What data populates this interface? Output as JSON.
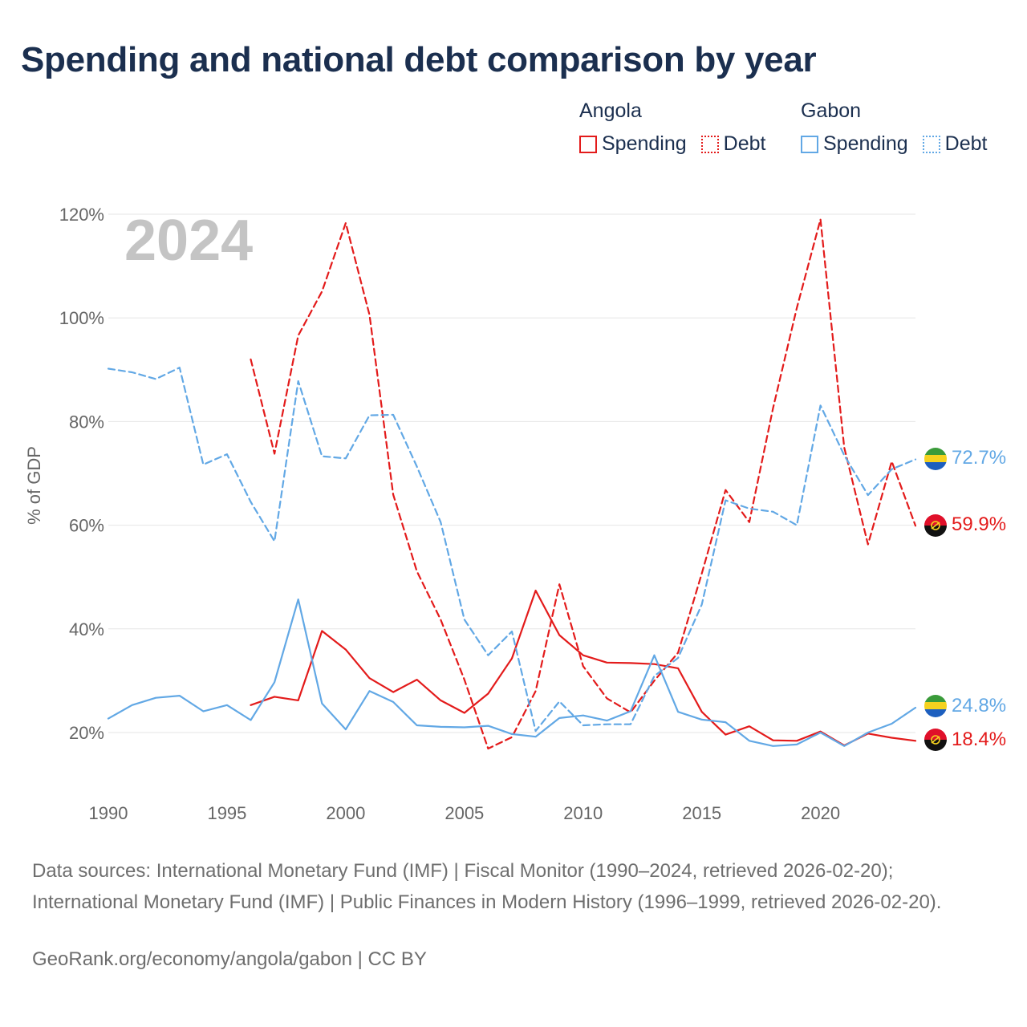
{
  "title": "Spending and national debt comparison by year",
  "legend": {
    "groups": [
      {
        "name": "Angola",
        "spending_label": "Spending",
        "debt_label": "Debt",
        "color": "#e31b1b"
      },
      {
        "name": "Gabon",
        "spending_label": "Spending",
        "debt_label": "Debt",
        "color": "#62a8e5"
      }
    ]
  },
  "current_year": "2024",
  "footer": {
    "sources": "Data sources: International Monetary Fund (IMF) | Fiscal Monitor (1990–2024, retrieved 2026-02-20); International Monetary Fund (IMF) | Public Finances in Modern History (1996–1999, retrieved 2026-02-20).",
    "credit": "GeoRank.org/economy/angola/gabon | CC BY"
  },
  "chart_data": {
    "type": "line",
    "title": "Spending and national debt comparison by year",
    "xlabel": "",
    "ylabel": "% of GDP",
    "xlim": [
      1990,
      2024
    ],
    "ylim": [
      10,
      120
    ],
    "x_ticks": [
      1990,
      1995,
      2000,
      2005,
      2010,
      2015,
      2020
    ],
    "x_tick_labels": [
      "1990",
      "1995",
      "2000",
      "2005",
      "2010",
      "2015",
      "2020"
    ],
    "y_ticks": [
      20,
      40,
      60,
      80,
      100,
      120
    ],
    "y_tick_labels": [
      "20%",
      "40%",
      "60%",
      "80%",
      "100%",
      "120%"
    ],
    "grid": true,
    "legend_position": "top-right",
    "series": [
      {
        "name": "Angola Spending",
        "country": "Angola",
        "metric": "Spending",
        "color": "#e31b1b",
        "dashed": false,
        "x_start": 1996,
        "values": [
          25.3,
          26.9,
          26.2,
          39.6,
          36.0,
          30.5,
          27.8,
          30.2,
          26.2,
          23.8,
          27.5,
          34.3,
          47.4,
          38.8,
          34.9,
          33.5,
          33.4,
          33.2,
          32.4,
          24.0,
          19.6,
          21.2,
          18.5,
          18.4,
          20.2,
          17.5,
          19.8,
          19.0,
          18.4
        ],
        "end_label": "18.4%"
      },
      {
        "name": "Angola Debt",
        "country": "Angola",
        "metric": "Debt",
        "color": "#e31b1b",
        "dashed": true,
        "x_start": 1996,
        "values": [
          92.0,
          73.8,
          96.6,
          105.1,
          118.3,
          100.6,
          65.9,
          51.1,
          41.8,
          30.2,
          16.9,
          19.1,
          28.0,
          48.6,
          32.8,
          26.6,
          23.9,
          30.0,
          35.4,
          50.7,
          66.8,
          60.6,
          82.6,
          101.9,
          119.0,
          75.0,
          56.3,
          72.3,
          59.9
        ],
        "end_label": "59.9%"
      },
      {
        "name": "Gabon Spending",
        "country": "Gabon",
        "metric": "Spending",
        "color": "#62a8e5",
        "dashed": false,
        "x_start": 1990,
        "values": [
          22.7,
          25.3,
          26.7,
          27.1,
          24.1,
          25.3,
          22.4,
          29.7,
          45.7,
          25.6,
          20.6,
          28.0,
          25.9,
          21.4,
          21.1,
          21.0,
          21.3,
          19.7,
          19.2,
          22.8,
          23.3,
          22.3,
          24.1,
          34.9,
          24.0,
          22.5,
          22.0,
          18.4,
          17.4,
          17.7,
          20.0,
          17.4,
          20.0,
          21.7,
          24.8
        ],
        "end_label": "24.8%"
      },
      {
        "name": "Gabon Debt",
        "country": "Gabon",
        "metric": "Debt",
        "color": "#62a8e5",
        "dashed": true,
        "x_start": 1990,
        "values": [
          90.2,
          89.5,
          88.2,
          90.4,
          71.7,
          73.7,
          64.5,
          56.9,
          87.8,
          73.3,
          72.9,
          81.2,
          81.3,
          71.3,
          60.6,
          41.8,
          34.9,
          39.5,
          20.3,
          26.0,
          21.4,
          21.6,
          21.6,
          30.9,
          34.4,
          44.7,
          64.8,
          63.2,
          62.6,
          60.0,
          83.1,
          73.5,
          65.8,
          70.8,
          72.7
        ],
        "end_label": "72.7%"
      }
    ]
  }
}
